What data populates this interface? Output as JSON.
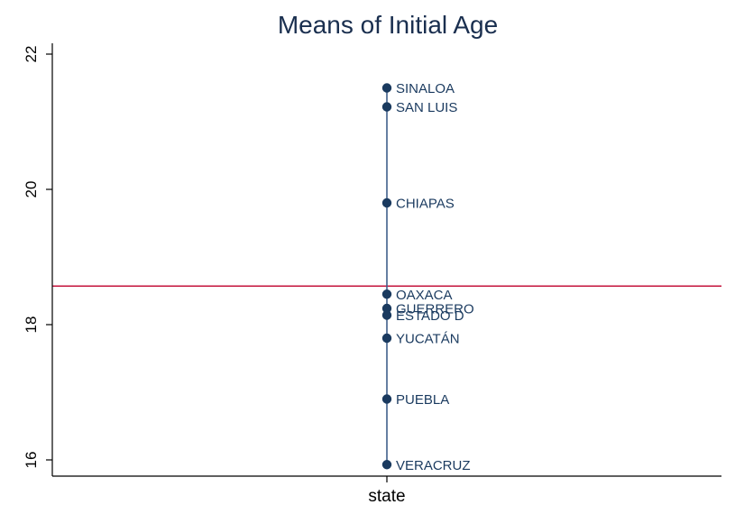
{
  "chart_data": {
    "type": "scatter",
    "title": "Means of Initial Age",
    "xlabel": "state",
    "ylabel": "",
    "ylim": [
      15.8,
      22.2
    ],
    "yticks": [
      "16",
      "18",
      "20",
      "22"
    ],
    "reference_line": 18.57,
    "grid": false,
    "legend": "none",
    "points": [
      {
        "label": "SINALOA",
        "y": 21.5
      },
      {
        "label": "SAN LUIS",
        "y": 21.22
      },
      {
        "label": "CHIAPAS",
        "y": 19.8
      },
      {
        "label": "OAXACA",
        "y": 18.45
      },
      {
        "label": "GUERRERO",
        "y": 18.24
      },
      {
        "label": "ESTADO D",
        "y": 18.14
      },
      {
        "label": "YUCATÁN",
        "y": 17.8
      },
      {
        "label": "PUEBLA",
        "y": 16.9
      },
      {
        "label": "VERACRUZ",
        "y": 15.93
      }
    ],
    "colors": {
      "point": "#1a3a5f",
      "stem": "#3f5f8a",
      "reference": "#c4143c",
      "axis": "#000000",
      "title": "#1a2f4f"
    }
  }
}
